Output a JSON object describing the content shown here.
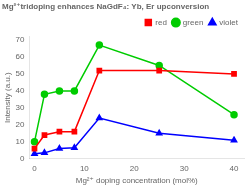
{
  "chart_data": {
    "type": "line",
    "title": "Mg²⁺tridoping enhances NaGdF₄: Yb, Er upconversion",
    "xlabel": "Mg²⁺ doping concentration (mol%)",
    "ylabel": "Intensity (a.u.)",
    "x": [
      0,
      2,
      5,
      8,
      13,
      25,
      40
    ],
    "series": [
      {
        "name": "red",
        "color": "#ff0000",
        "marker": "square",
        "values": [
          6,
          14,
          16,
          16,
          52,
          52,
          50
        ]
      },
      {
        "name": "green",
        "color": "#00cc00",
        "marker": "circle",
        "values": [
          10,
          38,
          40,
          40,
          67,
          55,
          26
        ]
      },
      {
        "name": "violet",
        "color": "#0000ff",
        "marker": "triangle",
        "values": [
          3,
          3.5,
          6,
          6.5,
          24,
          15,
          11
        ]
      }
    ],
    "xlim": [
      -1,
      42
    ],
    "ylim": [
      0,
      72
    ],
    "xticks": [
      0,
      10,
      20,
      30,
      40
    ],
    "yticks": [
      0,
      10,
      20,
      30,
      40,
      50,
      60,
      70
    ],
    "legend": "upper right",
    "grid": false
  }
}
